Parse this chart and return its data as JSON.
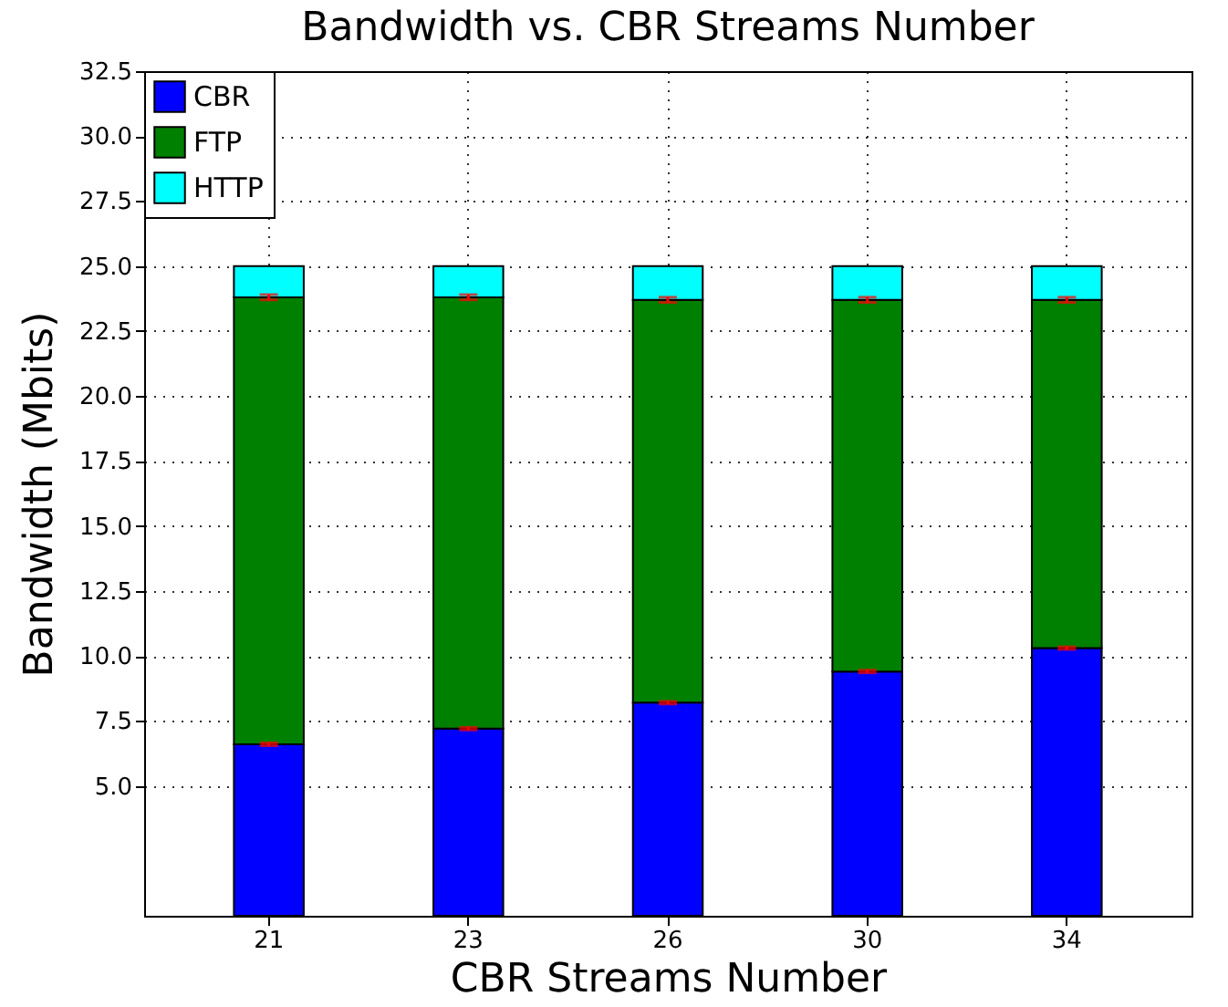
{
  "chart_data": {
    "type": "bar",
    "stacked": true,
    "title": "Bandwidth vs. CBR Streams Number",
    "xlabel": "CBR Streams Number",
    "ylabel": "Bandwidth (Mbits)",
    "categories": [
      "21",
      "23",
      "26",
      "30",
      "34"
    ],
    "series": [
      {
        "name": "CBR",
        "color": "#0000ff",
        "values": [
          6.6,
          7.2,
          8.2,
          9.4,
          10.3
        ],
        "errors": [
          0.05,
          0.05,
          0.05,
          0.05,
          0.05
        ]
      },
      {
        "name": "FTP",
        "color": "#008000",
        "values": [
          17.2,
          16.6,
          15.5,
          14.3,
          13.4
        ],
        "errors": [
          0.1,
          0.1,
          0.1,
          0.1,
          0.1
        ]
      },
      {
        "name": "HTTP",
        "color": "#00ffff",
        "values": [
          1.2,
          1.2,
          1.3,
          1.3,
          1.3
        ]
      }
    ],
    "ylim": [
      0,
      32.5
    ],
    "yticks": [
      {
        "value": 5,
        "label": "5.0"
      },
      {
        "value": 7.5,
        "label": "7.5"
      },
      {
        "value": 10,
        "label": "10.0"
      },
      {
        "value": 12.5,
        "label": "12.5"
      },
      {
        "value": 15,
        "label": "15.0"
      },
      {
        "value": 17.5,
        "label": "17.5"
      },
      {
        "value": 20,
        "label": "20.0"
      },
      {
        "value": 22.5,
        "label": "22.5"
      },
      {
        "value": 25,
        "label": "25.0"
      },
      {
        "value": 27.5,
        "label": "27.5"
      },
      {
        "value": 30,
        "label": "30.0"
      },
      {
        "value": 32.5,
        "label": "32.5"
      }
    ],
    "grid": true,
    "legend": "top left"
  }
}
